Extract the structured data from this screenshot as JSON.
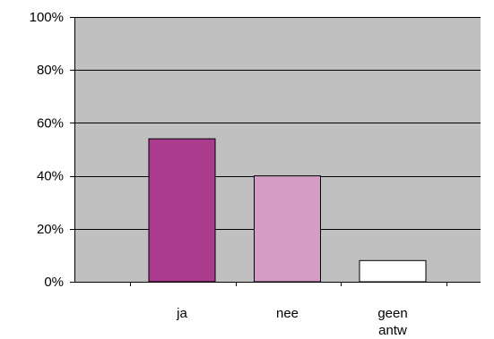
{
  "chart_data": {
    "type": "bar",
    "categories": [
      {
        "lines": [
          "ja"
        ]
      },
      {
        "lines": [
          "nee"
        ]
      },
      {
        "lines": [
          "geen",
          "antw"
        ]
      }
    ],
    "values": [
      54,
      40,
      8
    ],
    "bar_colors": [
      "#ab3b8d",
      "#d59cc5",
      "#ffffff"
    ],
    "plot_background": "#c0c0c0",
    "ylim": [
      0,
      100
    ],
    "yticks": [
      {
        "value": 0,
        "label": "0%"
      },
      {
        "value": 20,
        "label": "20%"
      },
      {
        "value": 40,
        "label": "40%"
      },
      {
        "value": 60,
        "label": "60%"
      },
      {
        "value": 80,
        "label": "80%"
      },
      {
        "value": 100,
        "label": "100%"
      }
    ],
    "grid": true,
    "legend": "none"
  }
}
